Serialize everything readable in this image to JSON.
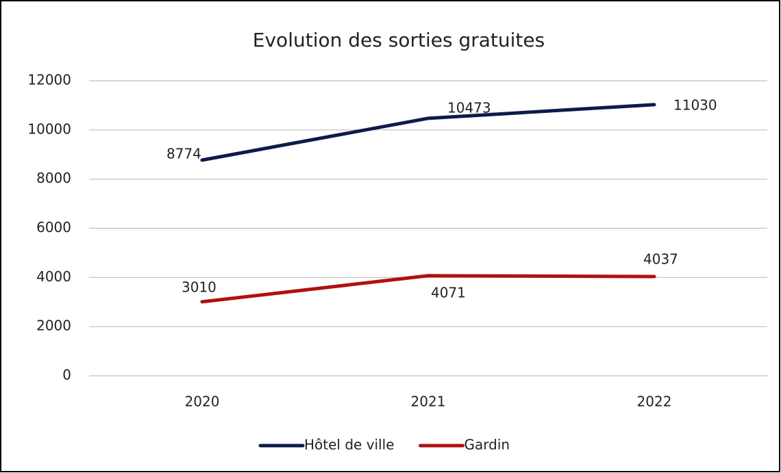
{
  "chart_data": {
    "type": "line",
    "title": "Evolution des sorties gratuites",
    "categories": [
      "2020",
      "2021",
      "2022"
    ],
    "series": [
      {
        "name": "Hôtel de ville",
        "color": "#0d1a4a",
        "values": [
          8774,
          10473,
          11030
        ]
      },
      {
        "name": "Gardin",
        "color": "#b01010",
        "values": [
          3010,
          4071,
          4037
        ]
      }
    ],
    "ylim": [
      0,
      12000
    ],
    "yticks": [
      0,
      2000,
      4000,
      6000,
      8000,
      10000,
      12000
    ],
    "grid": true,
    "legend": "bottom"
  }
}
